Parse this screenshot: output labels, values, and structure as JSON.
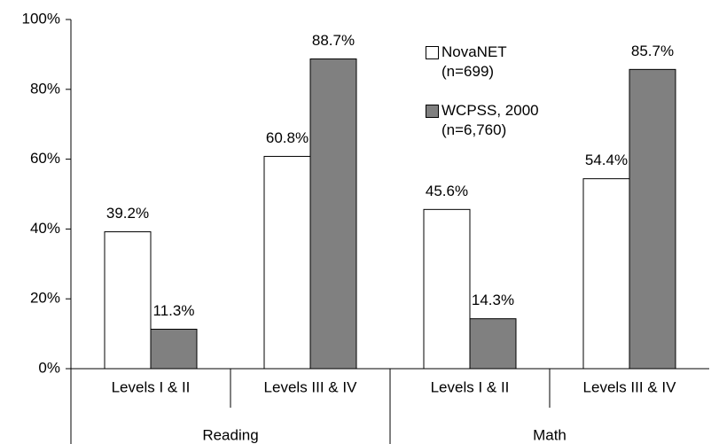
{
  "chart_data": {
    "type": "bar",
    "groups": [
      {
        "name": "Reading",
        "categories": [
          "Levels I & II",
          "Levels III & IV"
        ]
      },
      {
        "name": "Math",
        "categories": [
          "Levels I & II",
          "Levels III & IV"
        ]
      }
    ],
    "series": [
      {
        "name": "NovaNET (n=699)",
        "color": "#ffffff",
        "values": [
          39.2,
          60.8,
          45.6,
          54.4
        ],
        "value_labels": [
          "39.2%",
          "60.8%",
          "45.6%",
          "54.4%"
        ]
      },
      {
        "name": "WCPSS, 2000 (n=6,760)",
        "color": "#808080",
        "values": [
          11.3,
          88.7,
          14.3,
          85.7
        ],
        "value_labels": [
          "11.3%",
          "88.7%",
          "14.3%",
          "85.7%"
        ]
      }
    ],
    "ylim": [
      0,
      100
    ],
    "yticks": [
      {
        "value": 0,
        "label": "0%"
      },
      {
        "value": 20,
        "label": "20%"
      },
      {
        "value": 40,
        "label": "40%"
      },
      {
        "value": 60,
        "label": "60%"
      },
      {
        "value": 80,
        "label": "80%"
      },
      {
        "value": 100,
        "label": "100%"
      }
    ]
  }
}
